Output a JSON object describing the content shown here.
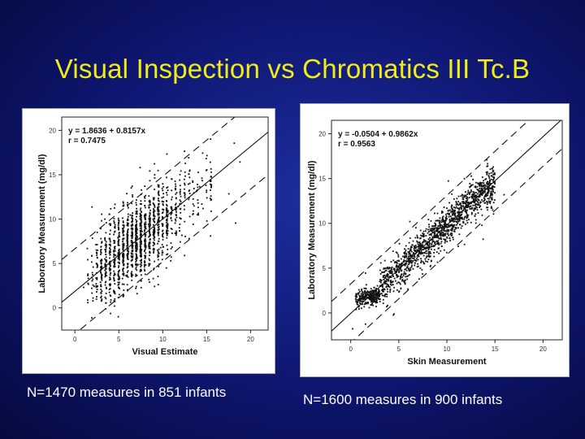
{
  "slide": {
    "title": "Visual Inspection vs Chromatics III Tc.B",
    "background_color": "#0e1670",
    "title_color": "#f2ec1a"
  },
  "captions": {
    "left": "N=1470 measures in 851 infants",
    "right": "N=1600 measures in 900 infants"
  },
  "chart_data": [
    {
      "type": "scatter",
      "xlabel": "Visual Estimate",
      "ylabel": "Laboratory Measurement (mg/dl)",
      "xlim": [
        -1.5,
        22
      ],
      "ylim": [
        -2.5,
        21.5
      ],
      "x_ticks": [
        0,
        5,
        10,
        15,
        20
      ],
      "y_ticks": [
        0,
        5,
        10,
        15,
        20
      ],
      "annotations": [
        "y = 1.8636 + 0.8157x",
        "r = 0.7475"
      ],
      "regression": {
        "intercept": 1.8636,
        "slope": 0.8157
      },
      "limit_offset": 4.8,
      "n_points": 1470,
      "point_color": "#111111",
      "grid": false
    },
    {
      "type": "scatter",
      "xlabel": "Skin Measurement",
      "ylabel": "Laboratory Measurement (mg/dl)",
      "xlim": [
        -2,
        22
      ],
      "ylim": [
        -3,
        21.5
      ],
      "x_ticks": [
        0,
        5,
        10,
        15,
        20
      ],
      "y_ticks": [
        0,
        5,
        10,
        15,
        20
      ],
      "annotations": [
        "y = -0.0504 + 0.9862x",
        "r = 0.9563"
      ],
      "regression": {
        "intercept": -0.0504,
        "slope": 0.9862
      },
      "limit_offset": 3.3,
      "n_points": 1600,
      "point_color": "#111111",
      "grid": false
    }
  ]
}
